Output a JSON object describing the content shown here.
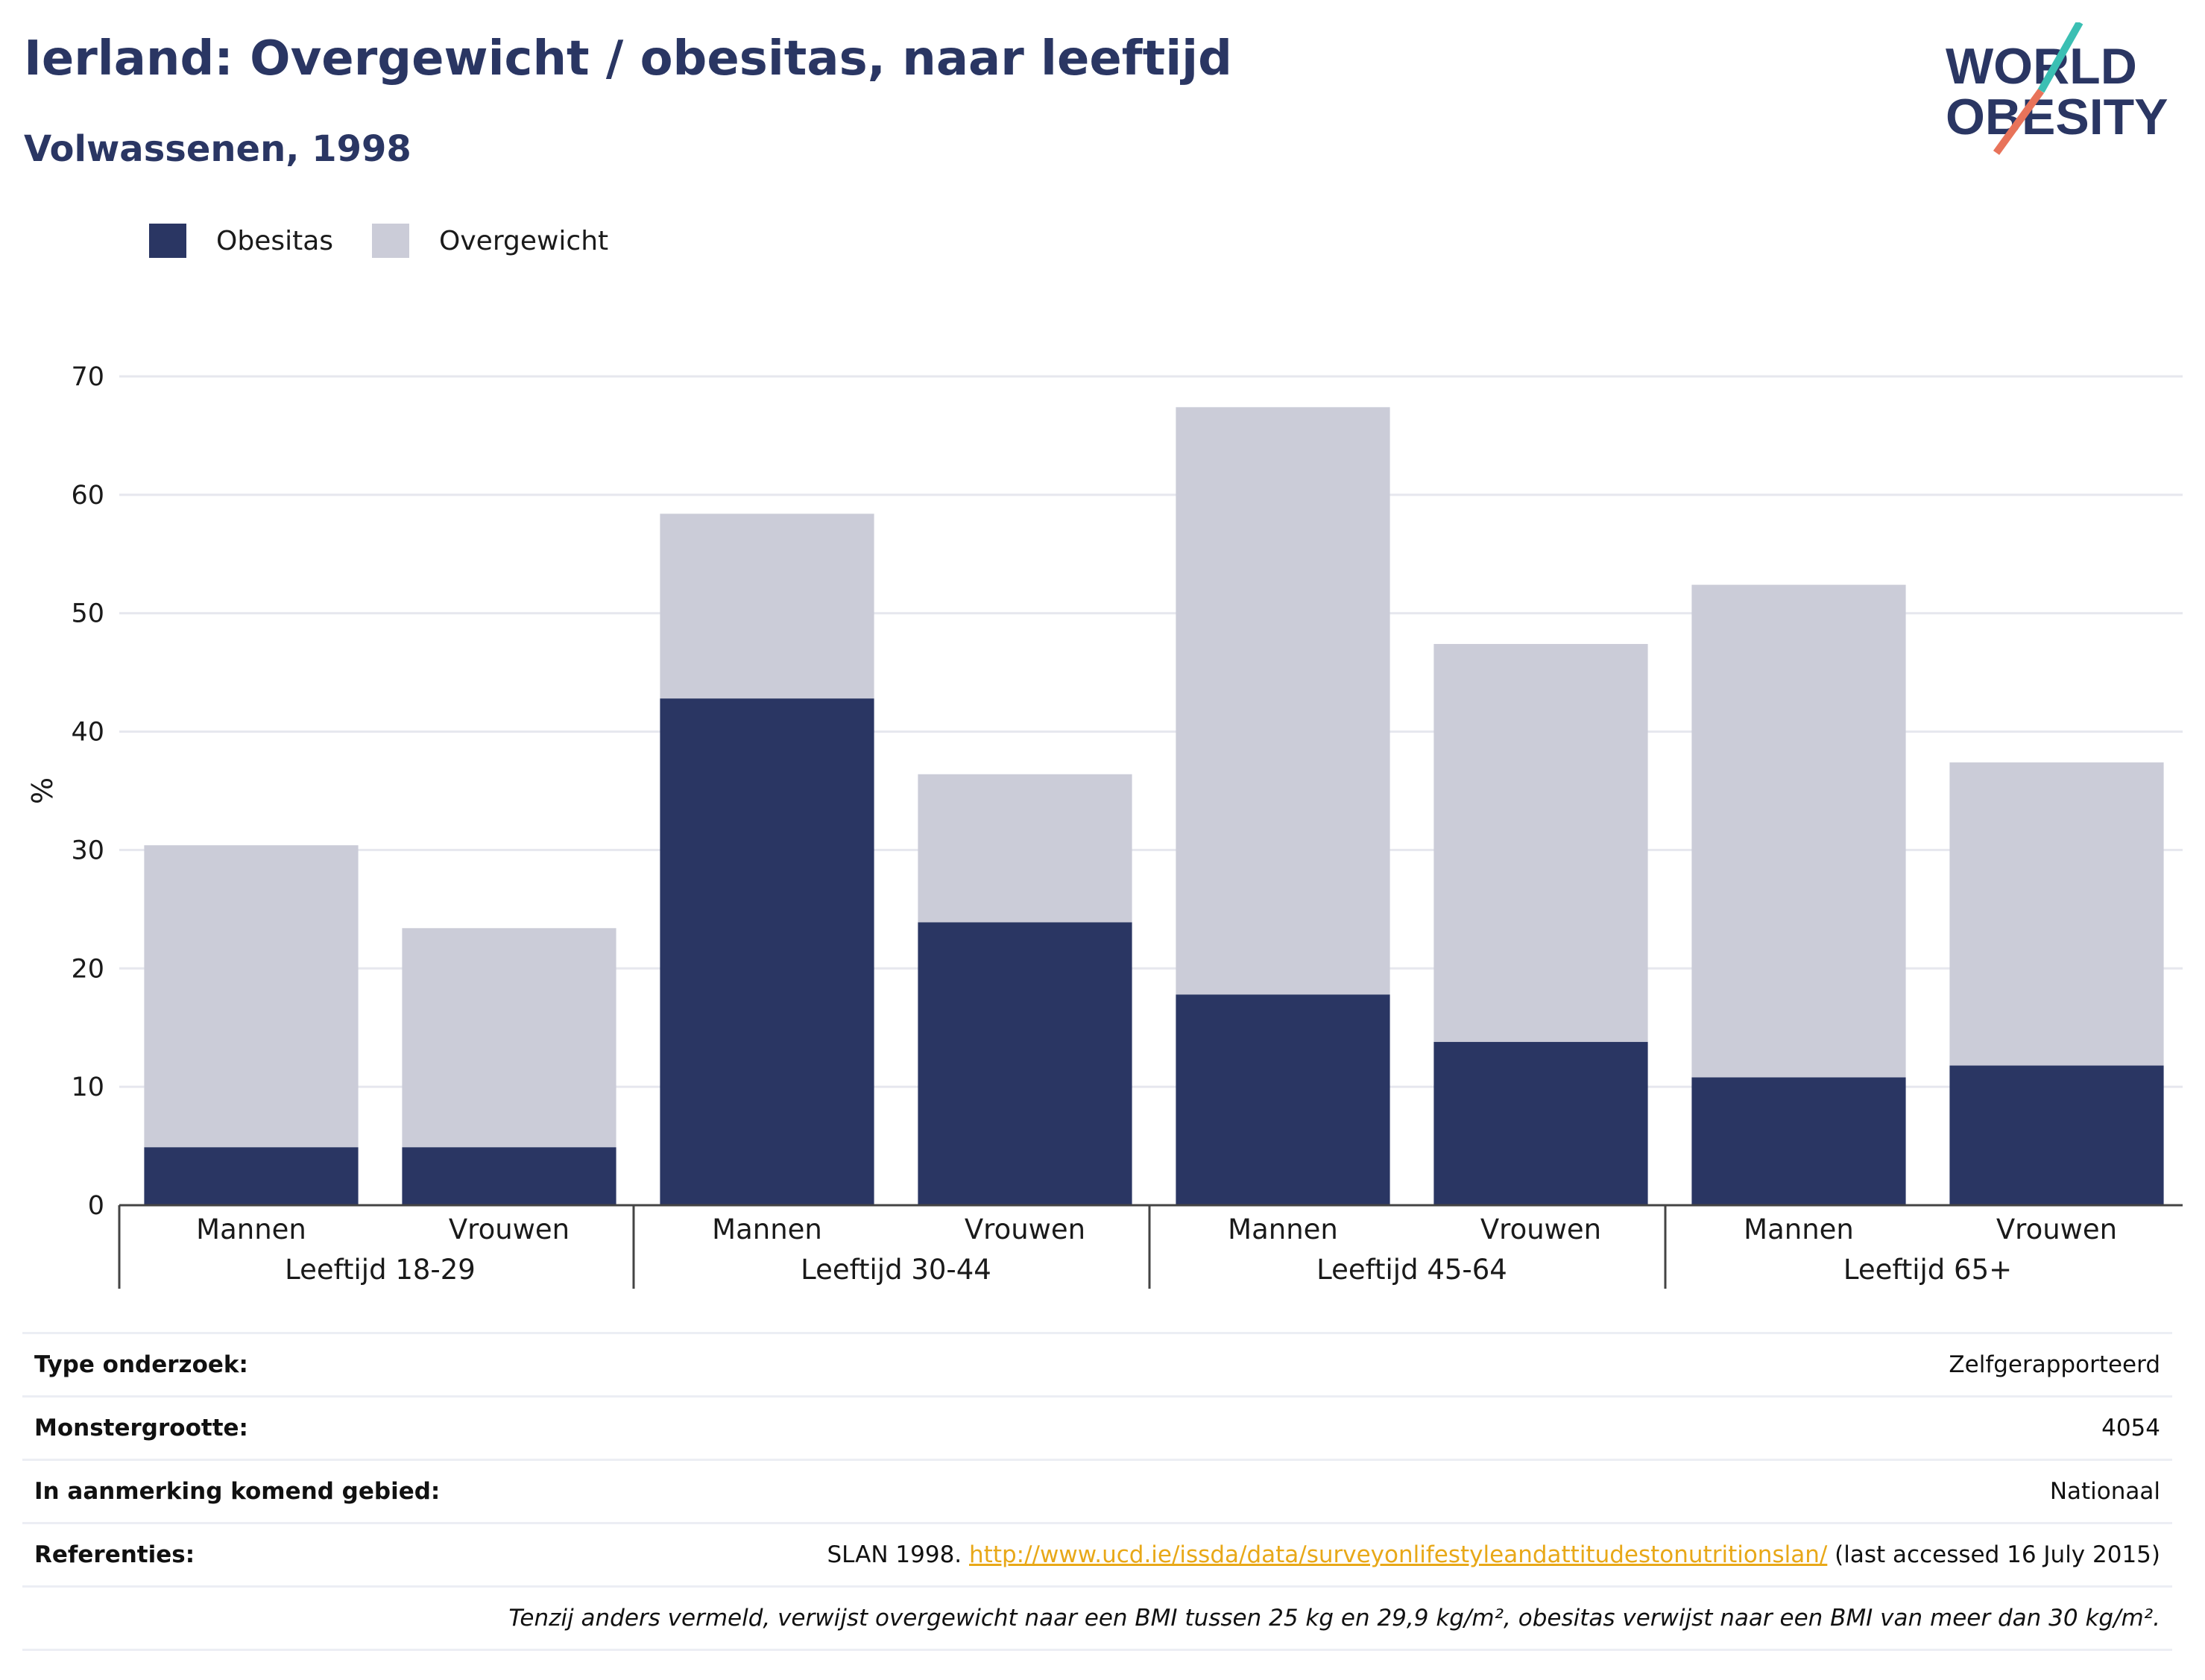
{
  "title": "Ierland: Overgewicht / obesitas, naar leeftijd",
  "subtitle": "Volwassenen, 1998",
  "logo": {
    "line1": "WORLD",
    "line2": "OBESITY"
  },
  "legend": [
    {
      "name": "Obesitas",
      "color": "#2a3663"
    },
    {
      "name": "Overgewicht",
      "color": "#cbccd8"
    }
  ],
  "chart_data": {
    "type": "bar",
    "stacked": true,
    "ylabel": "%",
    "ylim": [
      0,
      70
    ],
    "yticks": [
      0,
      10,
      20,
      30,
      40,
      50,
      60,
      70
    ],
    "grid": true,
    "legend_position": "top-left",
    "groups": [
      "Leeftijd 18-29",
      "Leeftijd 30-44",
      "Leeftijd 45-64",
      "Leeftijd 65+"
    ],
    "categories": [
      "Mannen",
      "Vrouwen",
      "Mannen",
      "Vrouwen",
      "Mannen",
      "Vrouwen",
      "Mannen",
      "Vrouwen"
    ],
    "series": [
      {
        "name": "Obesitas",
        "color": "#2a3663",
        "values": [
          4.9,
          4.9,
          42.8,
          23.9,
          17.8,
          13.8,
          10.8,
          11.8
        ]
      },
      {
        "name": "Overgewicht",
        "color": "#cbccd8",
        "values": [
          25.5,
          18.5,
          15.6,
          12.5,
          49.6,
          33.6,
          41.6,
          25.6
        ]
      }
    ]
  },
  "info": {
    "rows": [
      {
        "label": "Type onderzoek:",
        "value": "Zelfgerapporteerd"
      },
      {
        "label": "Monstergrootte:",
        "value": "4054"
      },
      {
        "label": "In aanmerking komend gebied:",
        "value": "Nationaal"
      }
    ],
    "references": {
      "label": "Referenties:",
      "prefix": "SLAN 1998.",
      "link": "http://www.ucd.ie/issda/data/surveyonlifestyleandattitudestonutritionslan/",
      "suffix": "(last accessed 16 July 2015)"
    },
    "note": "Tenzij anders vermeld, verwijst overgewicht naar een BMI tussen 25 kg en 29,9 kg/m², obesitas verwijst naar een BMI van meer dan 30 kg/m²."
  }
}
